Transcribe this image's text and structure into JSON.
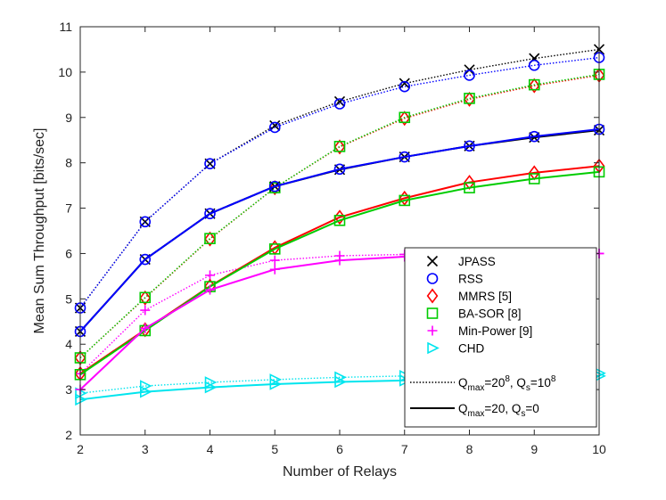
{
  "chart_data": {
    "type": "line",
    "title": "",
    "xlabel": "Number of Relays",
    "ylabel": "Mean Sum Throughput [bits/sec]",
    "xlim": [
      2,
      10
    ],
    "ylim": [
      2,
      11
    ],
    "xticks": [
      2,
      3,
      4,
      5,
      6,
      7,
      8,
      9,
      10
    ],
    "yticks": [
      2,
      3,
      4,
      5,
      6,
      7,
      8,
      9,
      10,
      11
    ],
    "grid": false,
    "legend_position": "lower-right",
    "x": [
      2,
      3,
      4,
      5,
      6,
      7,
      8,
      9,
      10
    ],
    "series": [
      {
        "name": "JPASS",
        "config": "dotted",
        "color": "#000000",
        "marker": "x",
        "values": [
          4.8,
          6.7,
          7.98,
          8.82,
          9.35,
          9.75,
          10.05,
          10.3,
          10.5
        ]
      },
      {
        "name": "RSS",
        "config": "dotted",
        "color": "#0000ff",
        "marker": "o",
        "values": [
          4.8,
          6.7,
          7.98,
          8.78,
          9.3,
          9.68,
          9.93,
          10.15,
          10.32
        ]
      },
      {
        "name": "MMRS [5]",
        "config": "dotted",
        "color": "#ff0000",
        "marker": "diamond",
        "values": [
          3.7,
          5.02,
          6.32,
          7.45,
          8.35,
          8.98,
          9.4,
          9.7,
          9.93
        ]
      },
      {
        "name": "BA-SOR [8]",
        "config": "dotted",
        "color": "#00cc00",
        "marker": "square",
        "values": [
          3.7,
          5.03,
          6.33,
          7.45,
          8.36,
          9.0,
          9.42,
          9.72,
          9.95
        ]
      },
      {
        "name": "Min-Power [9]",
        "config": "dotted",
        "color": "#ff00ff",
        "marker": "plus",
        "values": [
          3.35,
          4.75,
          5.52,
          5.85,
          5.95,
          5.98,
          6.0,
          6.0,
          6.0
        ]
      },
      {
        "name": "CHD",
        "config": "dotted",
        "color": "#00e5ee",
        "marker": "triangle-right",
        "values": [
          2.92,
          3.08,
          3.16,
          3.22,
          3.27,
          3.3,
          3.32,
          3.34,
          3.36
        ]
      },
      {
        "name": "JPASS",
        "config": "solid",
        "color": "#000000",
        "marker": "x",
        "values": [
          4.28,
          5.87,
          6.88,
          7.48,
          7.85,
          8.13,
          8.37,
          8.56,
          8.72
        ]
      },
      {
        "name": "RSS",
        "config": "solid",
        "color": "#0000ff",
        "marker": "o",
        "values": [
          4.28,
          5.87,
          6.88,
          7.48,
          7.86,
          8.13,
          8.37,
          8.58,
          8.74
        ]
      },
      {
        "name": "MMRS [5]",
        "config": "solid",
        "color": "#ff0000",
        "marker": "diamond",
        "values": [
          3.35,
          4.32,
          5.28,
          6.13,
          6.8,
          7.22,
          7.57,
          7.78,
          7.93
        ]
      },
      {
        "name": "BA-SOR [8]",
        "config": "solid",
        "color": "#00cc00",
        "marker": "square",
        "values": [
          3.33,
          4.3,
          5.27,
          6.1,
          6.73,
          7.17,
          7.45,
          7.65,
          7.8
        ]
      },
      {
        "name": "Min-Power [9]",
        "config": "solid",
        "color": "#ff00ff",
        "marker": "plus",
        "values": [
          3.0,
          4.35,
          5.2,
          5.65,
          5.85,
          5.93,
          5.97,
          5.99,
          6.0
        ]
      },
      {
        "name": "CHD",
        "config": "solid",
        "color": "#00e5ee",
        "marker": "triangle-right",
        "values": [
          2.78,
          2.95,
          3.05,
          3.12,
          3.17,
          3.2,
          3.24,
          3.27,
          3.3
        ]
      }
    ],
    "legend": {
      "markers": [
        {
          "label": "JPASS",
          "marker": "x",
          "color": "#000000"
        },
        {
          "label": "RSS",
          "marker": "o",
          "color": "#0000ff"
        },
        {
          "label": "MMRS [5]",
          "marker": "diamond",
          "color": "#ff0000"
        },
        {
          "label": "BA-SOR [8]",
          "marker": "square",
          "color": "#00cc00"
        },
        {
          "label": "Min-Power [9]",
          "marker": "plus",
          "color": "#ff00ff"
        },
        {
          "label": "CHD",
          "marker": "triangle-right",
          "color": "#00e5ee"
        }
      ],
      "line_styles": [
        {
          "style": "dotted",
          "q_symbol": "Q",
          "q_sub": "max",
          "q_eq": "=20",
          "q_sup": "8",
          "sep": ", ",
          "s_symbol": "Q",
          "s_sub": "s",
          "s_eq": "=10",
          "s_sup": "8"
        },
        {
          "style": "solid",
          "q_symbol": "Q",
          "q_sub": "max",
          "q_eq": "=20",
          "q_sup": "",
          "sep": ", ",
          "s_symbol": "Q",
          "s_sub": "s",
          "s_eq": "=0",
          "s_sup": ""
        }
      ]
    }
  }
}
